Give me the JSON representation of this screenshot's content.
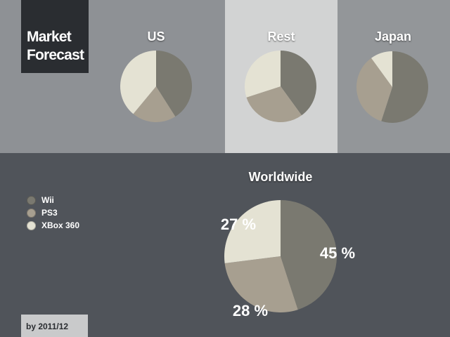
{
  "title_lines": [
    "Market",
    "Forecast"
  ],
  "footer": "by 2011/12",
  "colors": {
    "Wii": "#7a7970",
    "PS3": "#a79f90",
    "XBox 360": "#e4e2d3"
  },
  "legend": [
    "Wii",
    "PS3",
    "XBox 360"
  ],
  "chart_data": [
    {
      "type": "pie",
      "title": "US",
      "categories": [
        "Wii",
        "PS3",
        "XBox 360"
      ],
      "values": [
        41,
        20,
        39
      ]
    },
    {
      "type": "pie",
      "title": "Rest",
      "categories": [
        "Wii",
        "PS3",
        "XBox 360"
      ],
      "values": [
        40,
        30,
        30
      ]
    },
    {
      "type": "pie",
      "title": "Japan",
      "categories": [
        "Wii",
        "PS3",
        "XBox 360"
      ],
      "values": [
        55,
        35,
        10
      ]
    },
    {
      "type": "pie",
      "title": "Worldwide",
      "categories": [
        "Wii",
        "PS3",
        "XBox 360"
      ],
      "values": [
        45,
        28,
        27
      ],
      "data_labels": [
        "45 %",
        "28 %",
        "27 %"
      ]
    }
  ]
}
